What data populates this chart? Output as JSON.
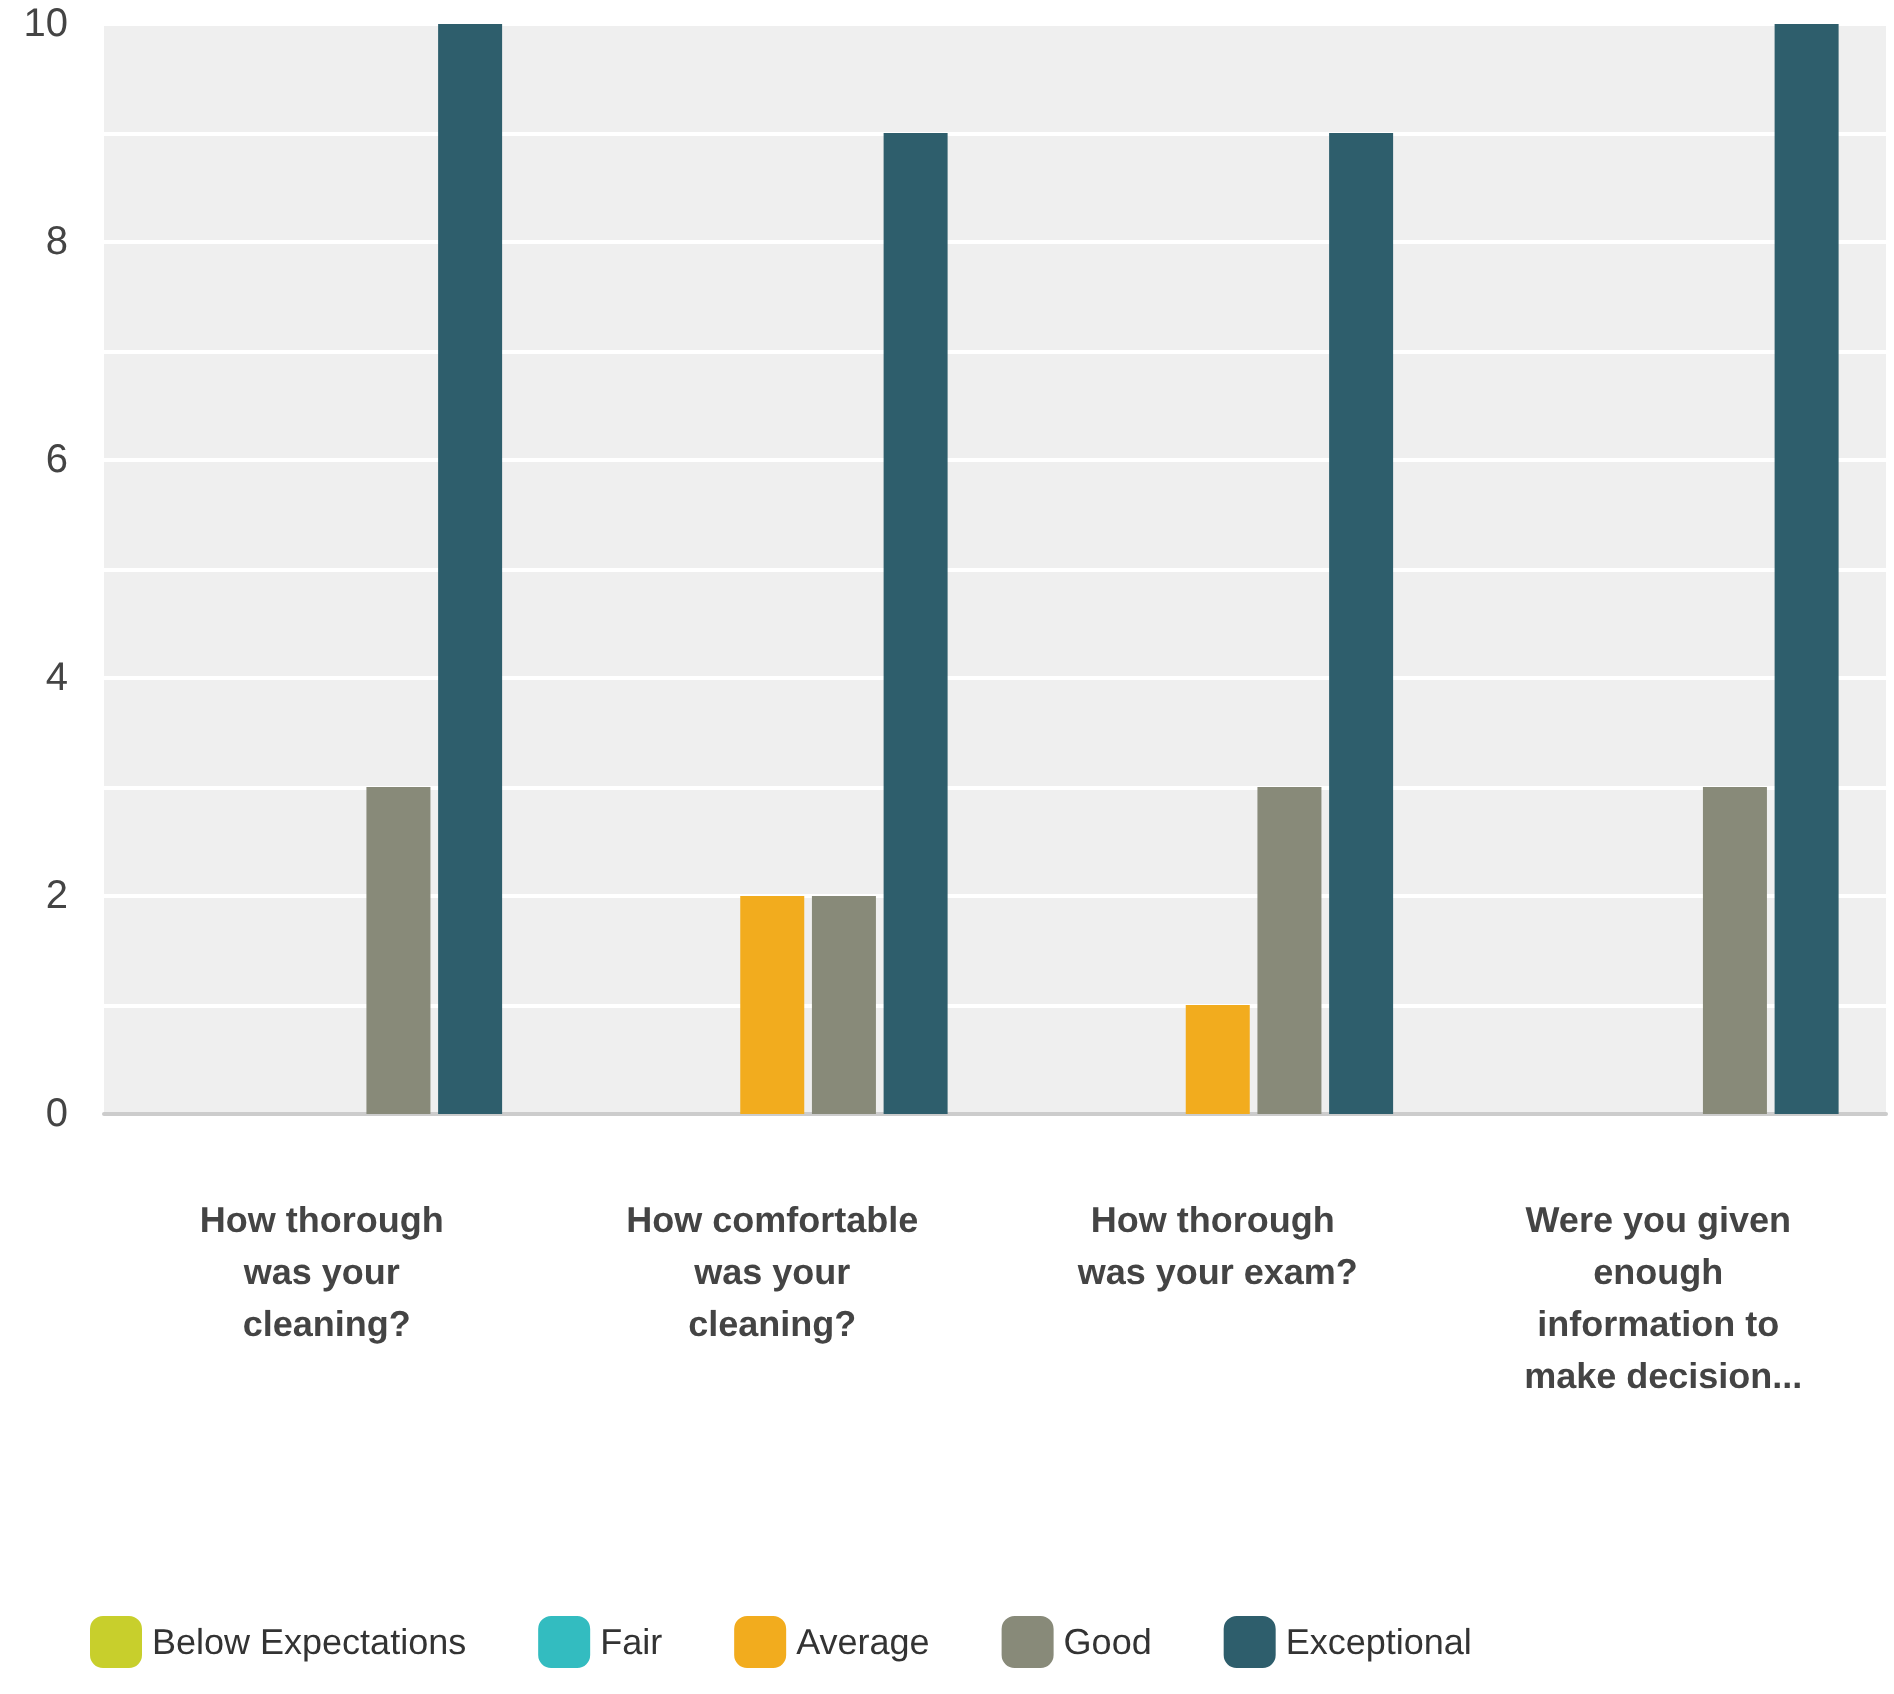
{
  "chart_data": {
    "type": "bar",
    "categories": [
      "How thorough was your cleaning?",
      "How comfortable was your cleaning?",
      "How thorough was your exam?",
      "Were you given enough information to make decision..."
    ],
    "series": [
      {
        "name": "Below Expectations",
        "color": "#c8cf2c",
        "values": [
          0,
          0,
          0,
          0
        ]
      },
      {
        "name": "Fair",
        "color": "#33bcc0",
        "values": [
          0,
          0,
          0,
          0
        ]
      },
      {
        "name": "Average",
        "color": "#f2ac1e",
        "values": [
          0,
          2,
          1,
          0
        ]
      },
      {
        "name": "Good",
        "color": "#888a79",
        "values": [
          3,
          2,
          3,
          3
        ]
      },
      {
        "name": "Exceptional",
        "color": "#2e5e6c",
        "values": [
          10,
          9,
          9,
          10
        ]
      }
    ],
    "ylim": [
      0,
      10
    ],
    "yticks": [
      0,
      {
        "value": 1,
        "label": null
      },
      2,
      {
        "value": 3,
        "label": null
      },
      4,
      {
        "value": 5,
        "label": null
      },
      6,
      {
        "value": 7,
        "label": null
      },
      8,
      {
        "value": 9,
        "label": null
      },
      10
    ],
    "grid": true,
    "legend": "bottom"
  }
}
